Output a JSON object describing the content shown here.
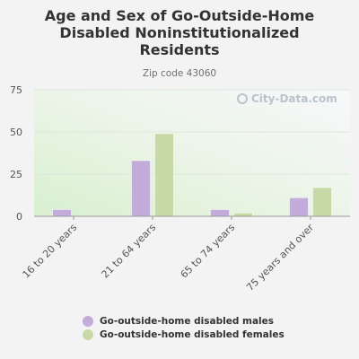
{
  "watermark": "City-Data.com",
  "colors": {
    "males": "#c2acd9",
    "females": "#c7d9a6"
  },
  "chart_data": {
    "type": "bar",
    "title": "Age and Sex of Go-Outside-Home Disabled Noninstitutionalized Residents",
    "subtitle": "Zip code 43060",
    "categories": [
      "16 to 20 years",
      "21 to 64 years",
      "65 to 74 years",
      "75 years and over"
    ],
    "series": [
      {
        "name": "Go-outside-home disabled males",
        "values": [
          4,
          33,
          4,
          11
        ]
      },
      {
        "name": "Go-outside-home disabled females",
        "values": [
          0,
          49,
          2,
          17
        ]
      }
    ],
    "y_ticks": [
      0,
      25,
      50,
      75
    ],
    "ylim": [
      0,
      75
    ],
    "grid": true,
    "legend_position": "bottom"
  }
}
